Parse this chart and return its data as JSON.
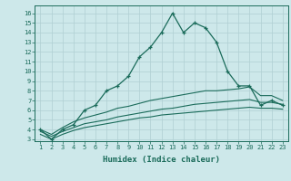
{
  "x": [
    1,
    2,
    3,
    4,
    5,
    6,
    7,
    8,
    9,
    10,
    11,
    12,
    13,
    14,
    15,
    16,
    17,
    18,
    19,
    20,
    21,
    22,
    23
  ],
  "curve_main": [
    4.0,
    3.0,
    4.0,
    4.5,
    6.0,
    6.5,
    8.0,
    8.5,
    9.5,
    11.5,
    12.5,
    14.0,
    16.0,
    14.0,
    15.0,
    14.5,
    13.0,
    10.0,
    8.5,
    8.5,
    6.5,
    7.0,
    6.5
  ],
  "curve_upper": [
    4.0,
    3.5,
    4.2,
    4.8,
    5.2,
    5.5,
    5.8,
    6.2,
    6.4,
    6.7,
    7.0,
    7.2,
    7.4,
    7.6,
    7.8,
    8.0,
    8.0,
    8.1,
    8.2,
    8.4,
    7.5,
    7.5,
    7.0
  ],
  "curve_mid": [
    3.8,
    3.3,
    3.8,
    4.2,
    4.6,
    4.8,
    5.0,
    5.3,
    5.5,
    5.7,
    5.9,
    6.1,
    6.2,
    6.4,
    6.6,
    6.7,
    6.8,
    6.9,
    7.0,
    7.1,
    6.8,
    6.8,
    6.6
  ],
  "curve_low": [
    3.5,
    3.0,
    3.5,
    3.9,
    4.2,
    4.4,
    4.6,
    4.8,
    5.0,
    5.2,
    5.3,
    5.5,
    5.6,
    5.7,
    5.8,
    5.9,
    6.0,
    6.1,
    6.2,
    6.3,
    6.2,
    6.2,
    6.1
  ],
  "bg_color": "#cde8ea",
  "line_color": "#1a6b5a",
  "grid_color": "#b0cfd2",
  "xlabel": "Humidex (Indice chaleur)",
  "ylabel_ticks": [
    3,
    4,
    5,
    6,
    7,
    8,
    9,
    10,
    11,
    12,
    13,
    14,
    15,
    16
  ],
  "xlim": [
    0.5,
    23.5
  ],
  "ylim": [
    2.8,
    16.8
  ]
}
